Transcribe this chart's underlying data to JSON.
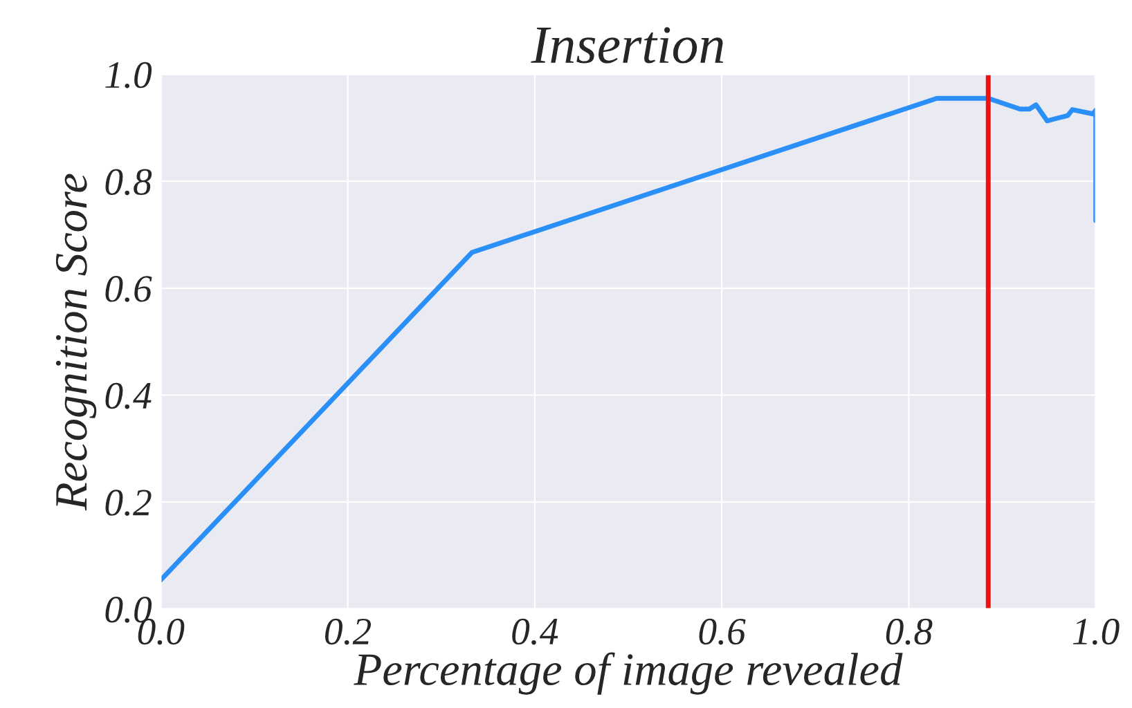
{
  "chart_data": {
    "type": "line",
    "title": "Insertion",
    "xlabel": "Percentage of image revealed",
    "ylabel": "Recognition Score",
    "series": [
      {
        "color": "#2a8ff7",
        "x": [
          0.0,
          0.333,
          0.83,
          0.885,
          0.919,
          0.929,
          0.936,
          0.948,
          0.97,
          0.975,
          0.997,
          1.0,
          1.0
        ],
        "values": [
          0.054,
          0.667,
          0.955,
          0.955,
          0.935,
          0.935,
          0.943,
          0.913,
          0.923,
          0.934,
          0.926,
          0.933,
          0.726
        ]
      }
    ],
    "xlim": [
      0.0,
      1.0
    ],
    "ylim": [
      0.0,
      1.0
    ],
    "xticks": [
      {
        "value": 0,
        "label": "0.0"
      },
      0.2,
      0.4,
      0.6,
      0.8,
      {
        "value": 1,
        "label": "1.0"
      }
    ],
    "yticks": [
      {
        "value": 0,
        "label": "0.0"
      },
      0.2,
      0.4,
      0.6,
      0.8,
      {
        "value": 1,
        "label": "1.0"
      }
    ],
    "ref_lines": [
      {
        "axis": "x",
        "value": 0.885,
        "color": "#ee1111"
      }
    ],
    "grid": true
  }
}
